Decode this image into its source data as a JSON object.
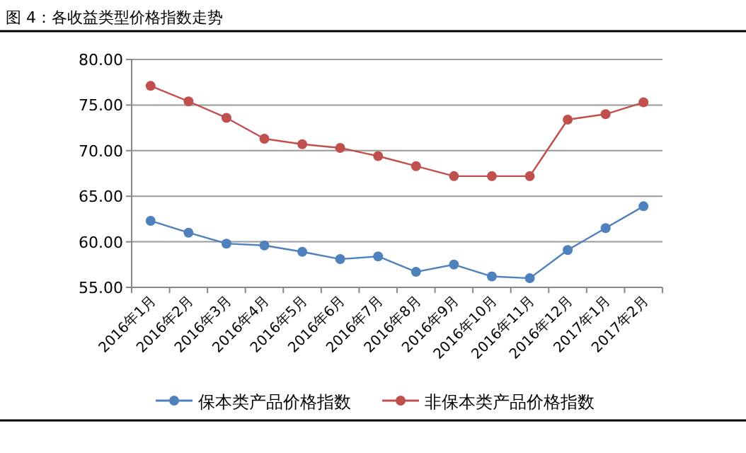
{
  "chart_data": {
    "type": "line",
    "title": "图 4：各收益类型价格指数走势",
    "categories": [
      "2016年1月",
      "2016年2月",
      "2016年3月",
      "2016年4月",
      "2016年5月",
      "2016年6月",
      "2016年7月",
      "2016年8月",
      "2016年9月",
      "2016年10月",
      "2016年11月",
      "2016年12月",
      "2017年1月",
      "2017年2月"
    ],
    "series": [
      {
        "name": "保本类产品价格指数",
        "color": "#4f81bd",
        "values": [
          62.3,
          61.0,
          59.8,
          59.6,
          58.9,
          58.1,
          58.4,
          56.7,
          57.5,
          56.2,
          56.0,
          59.1,
          61.5,
          63.9
        ]
      },
      {
        "name": "非保本类产品价格指数",
        "color": "#c0504d",
        "values": [
          77.1,
          75.4,
          73.6,
          71.3,
          70.7,
          70.3,
          69.4,
          68.3,
          67.2,
          67.2,
          67.2,
          73.4,
          74.0,
          75.3
        ]
      }
    ],
    "ylim": [
      55,
      80
    ],
    "yticks": [
      {
        "value": 55,
        "label": "55.00"
      },
      {
        "value": 60,
        "label": "60.00"
      },
      {
        "value": 65,
        "label": "65.00"
      },
      {
        "value": 70,
        "label": "70.00"
      },
      {
        "value": 75,
        "label": "75.00"
      },
      {
        "value": 80,
        "label": "80.00"
      }
    ],
    "grid": "y",
    "legend": "bottom",
    "marker": "circle",
    "line_style": "solid"
  }
}
